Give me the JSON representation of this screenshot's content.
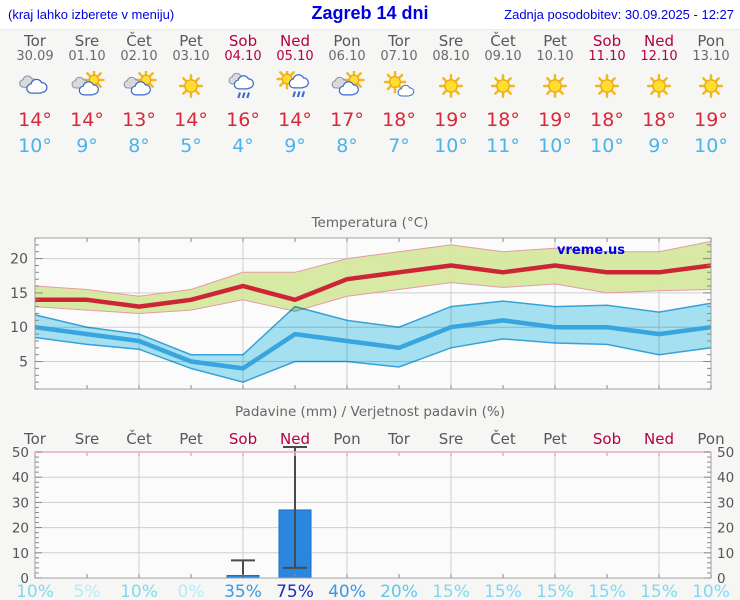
{
  "header": {
    "left_note": "(kraj lahko izberete v meniju)",
    "title": "Zagreb 14 dni",
    "updated": "Zadnja posodobitev: 30.09.2025 - 12:27"
  },
  "colors": {
    "header_blue": "#0000dd",
    "weekday": "#58585a",
    "weekend": "#b30048",
    "high_temp": "#d8293a",
    "low_temp": "#4ab3ec",
    "max_line": "#cc2636",
    "max_band": "#d5e79c",
    "max_band_edge": "#e49ba4",
    "min_line": "#38a5de",
    "min_band": "#a7e4f4",
    "bar_fill": "#2b86de",
    "bar_edge": "#1d6fc2",
    "whisker": "#4a4a4a",
    "grid": "#cfcfcf",
    "spine": "#a3a3a3",
    "tick": "#888888",
    "axis_label": "#555555",
    "chart_title": "#666666",
    "precip_top_border": "#efaab6",
    "plot_bg": "#fbfbfb",
    "watermark": "#0000ee"
  },
  "prob_colors": {
    "verylow": "#b5ecf8",
    "low": "#7edaf2",
    "lowmed": "#5cc8ee",
    "medium": "#3c99e2",
    "high": "#1b2ec2"
  },
  "days": [
    {
      "name": "Tor",
      "date": "30.09",
      "weekend": false,
      "icon": "cloudy",
      "high": "14°",
      "low": "10°"
    },
    {
      "name": "Sre",
      "date": "01.10",
      "weekend": false,
      "icon": "partly-cloudy",
      "high": "14°",
      "low": "9°"
    },
    {
      "name": "Čet",
      "date": "02.10",
      "weekend": false,
      "icon": "partly-cloudy",
      "high": "13°",
      "low": "8°"
    },
    {
      "name": "Pet",
      "date": "03.10",
      "weekend": false,
      "icon": "sunny",
      "high": "14°",
      "low": "5°"
    },
    {
      "name": "Sob",
      "date": "04.10",
      "weekend": true,
      "icon": "rain",
      "high": "16°",
      "low": "4°"
    },
    {
      "name": "Ned",
      "date": "05.10",
      "weekend": true,
      "icon": "sun-rain",
      "high": "14°",
      "low": "9°"
    },
    {
      "name": "Pon",
      "date": "06.10",
      "weekend": false,
      "icon": "partly-cloudy",
      "high": "17°",
      "low": "8°"
    },
    {
      "name": "Tor",
      "date": "07.10",
      "weekend": false,
      "icon": "mostly-sunny",
      "high": "18°",
      "low": "7°"
    },
    {
      "name": "Sre",
      "date": "08.10",
      "weekend": false,
      "icon": "sunny",
      "high": "19°",
      "low": "10°"
    },
    {
      "name": "Čet",
      "date": "09.10",
      "weekend": false,
      "icon": "sunny",
      "high": "18°",
      "low": "11°"
    },
    {
      "name": "Pet",
      "date": "10.10",
      "weekend": false,
      "icon": "sunny",
      "high": "19°",
      "low": "10°"
    },
    {
      "name": "Sob",
      "date": "11.10",
      "weekend": true,
      "icon": "sunny",
      "high": "18°",
      "low": "10°"
    },
    {
      "name": "Ned",
      "date": "12.10",
      "weekend": true,
      "icon": "sunny",
      "high": "18°",
      "low": "9°"
    },
    {
      "name": "Pon",
      "date": "13.10",
      "weekend": false,
      "icon": "sunny",
      "high": "19°",
      "low": "10°"
    }
  ],
  "chart_data": [
    {
      "type": "line",
      "title": "Temperatura (°C)",
      "watermark": "vreme.us",
      "ylim": [
        1,
        23
      ],
      "yticks": [
        5,
        10,
        15,
        20
      ],
      "ytick_minor_step": 1,
      "x_gridlines": [
        0,
        2,
        4,
        6,
        8,
        10,
        12
      ],
      "grid": true,
      "series": [
        {
          "name": "max-temperature",
          "values": [
            14,
            14,
            13,
            14,
            16,
            14,
            17,
            18,
            19,
            18,
            19,
            18,
            18,
            19
          ],
          "band_upper": [
            16,
            15.5,
            14.5,
            15.5,
            18,
            18,
            20,
            21,
            22,
            21,
            21.5,
            21,
            21,
            22.5
          ],
          "band_lower": [
            13,
            12.5,
            12,
            12.5,
            14,
            12.3,
            14.5,
            15.5,
            16.5,
            15.8,
            16.3,
            15,
            15.3,
            15.5
          ]
        },
        {
          "name": "min-temperature",
          "values": [
            10,
            9,
            8,
            5,
            4,
            9,
            8,
            7,
            10,
            11,
            10,
            10,
            9,
            10
          ],
          "band_upper": [
            11.8,
            10,
            9,
            6,
            6,
            13,
            11,
            10,
            13,
            13.8,
            13,
            13.2,
            12.2,
            13.5
          ],
          "band_lower": [
            8.5,
            7.5,
            6.8,
            4,
            2,
            5,
            5,
            4.2,
            7,
            8.3,
            7.7,
            7.5,
            6,
            7
          ]
        }
      ]
    },
    {
      "type": "bar",
      "title": "Padavine (mm) / Verjetnost padavin (%)",
      "categories": [
        "Tor",
        "Sre",
        "Čet",
        "Pet",
        "Sob",
        "Ned",
        "Pon",
        "Tor",
        "Sre",
        "Čet",
        "Pet",
        "Sob",
        "Ned",
        "Pon"
      ],
      "weekend_indices": [
        4,
        5,
        11,
        12
      ],
      "ylim": [
        0,
        50
      ],
      "yticks": [
        0,
        10,
        20,
        30,
        40,
        50
      ],
      "ytick_minor_step": 2,
      "x_gridlines": [
        0,
        2,
        4,
        6,
        8,
        10,
        12
      ],
      "values": [
        0,
        0,
        0,
        0,
        1,
        27,
        0,
        0,
        0,
        0,
        0,
        0,
        0,
        0
      ],
      "whiskers": [
        null,
        null,
        null,
        null,
        {
          "low": 0,
          "high": 7
        },
        {
          "low": 4,
          "high": 52
        },
        null,
        null,
        null,
        null,
        null,
        null,
        null,
        null
      ],
      "probabilities": [
        {
          "label": "10%",
          "level": "low"
        },
        {
          "label": "5%",
          "level": "verylow"
        },
        {
          "label": "10%",
          "level": "low"
        },
        {
          "label": "0%",
          "level": "verylow"
        },
        {
          "label": "35%",
          "level": "medium"
        },
        {
          "label": "75%",
          "level": "high"
        },
        {
          "label": "40%",
          "level": "medium"
        },
        {
          "label": "20%",
          "level": "lowmed"
        },
        {
          "label": "15%",
          "level": "low"
        },
        {
          "label": "15%",
          "level": "low"
        },
        {
          "label": "15%",
          "level": "low"
        },
        {
          "label": "15%",
          "level": "low"
        },
        {
          "label": "15%",
          "level": "low"
        },
        {
          "label": "10%",
          "level": "low"
        }
      ]
    }
  ]
}
